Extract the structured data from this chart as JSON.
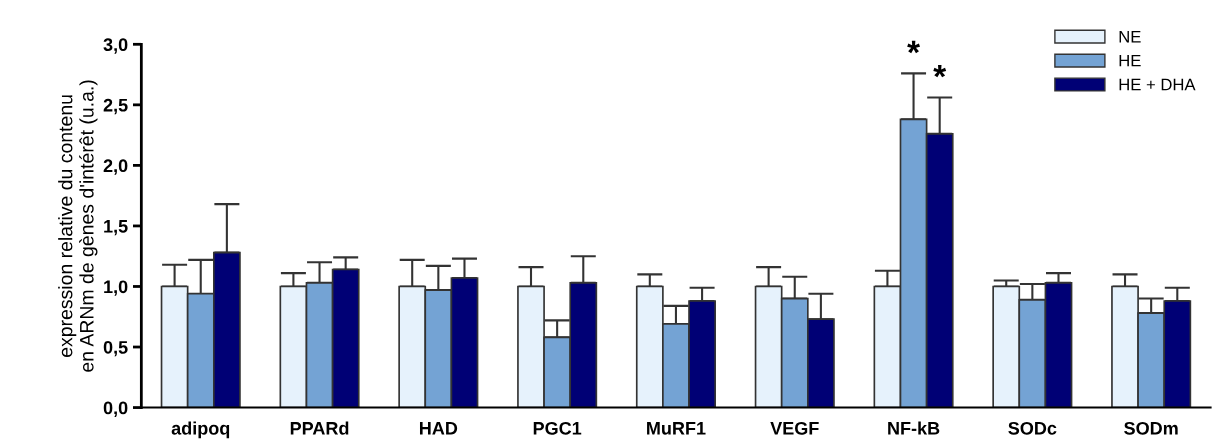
{
  "chart_data": {
    "type": "bar",
    "ylabel": "expression relative du contenu\nen ARNm de gènes d'intérêt (u.a.)",
    "categories": [
      "adipoq",
      "PPARd",
      "HAD",
      "PGC1",
      "MuRF1",
      "VEGF",
      "NF-kB",
      "SODc",
      "SODm"
    ],
    "series": [
      {
        "name": "NE",
        "color": "#e6f2fc",
        "values": [
          1.0,
          1.0,
          1.0,
          1.0,
          1.0,
          1.0,
          1.0,
          1.0,
          1.0
        ],
        "errors": [
          [
            1.0,
            1.18
          ],
          [
            1.0,
            1.11
          ],
          [
            1.0,
            1.22
          ],
          [
            1.0,
            1.16
          ],
          [
            1.0,
            1.1
          ],
          [
            1.0,
            1.16
          ],
          [
            1.0,
            1.13
          ],
          [
            1.0,
            1.05
          ],
          [
            1.0,
            1.1
          ]
        ]
      },
      {
        "name": "HE",
        "color": "#74a3d4",
        "values": [
          0.94,
          1.03,
          0.97,
          0.58,
          0.69,
          0.9,
          2.38,
          0.89,
          0.78
        ],
        "errors": [
          [
            0.94,
            1.22
          ],
          [
            1.03,
            1.2
          ],
          [
            0.97,
            1.17
          ],
          [
            0.58,
            0.72
          ],
          [
            0.69,
            0.84
          ],
          [
            0.9,
            1.08
          ],
          [
            2.38,
            2.76
          ],
          [
            0.89,
            1.02
          ],
          [
            0.78,
            0.9
          ]
        ]
      },
      {
        "name": "HE + DHA",
        "color": "#000075",
        "values": [
          1.28,
          1.14,
          1.07,
          1.03,
          0.88,
          0.73,
          2.26,
          1.03,
          0.88
        ],
        "errors": [
          [
            1.28,
            1.68
          ],
          [
            1.14,
            1.24
          ],
          [
            1.07,
            1.23
          ],
          [
            1.03,
            1.25
          ],
          [
            0.88,
            0.99
          ],
          [
            0.73,
            0.94
          ],
          [
            2.26,
            2.56
          ],
          [
            1.03,
            1.11
          ],
          [
            0.88,
            0.99
          ]
        ]
      }
    ],
    "ylim": [
      0,
      3.0
    ],
    "yticks": [
      {
        "value": 0,
        "label": "0,0"
      },
      {
        "value": 0.5,
        "label": "0,5"
      },
      {
        "value": 1.0,
        "label": "1,0"
      },
      {
        "value": 1.5,
        "label": "1,5"
      },
      {
        "value": 2.0,
        "label": "2,0"
      },
      {
        "value": 2.5,
        "label": "2,5"
      },
      {
        "value": 3.0,
        "label": "3,0"
      }
    ],
    "annotations": [
      {
        "text": "*",
        "x": "NF-kB",
        "y": 2.76
      },
      {
        "text": "*",
        "x": "NF-kB",
        "y": 2.56
      }
    ],
    "legend": "top right",
    "grid": false
  }
}
